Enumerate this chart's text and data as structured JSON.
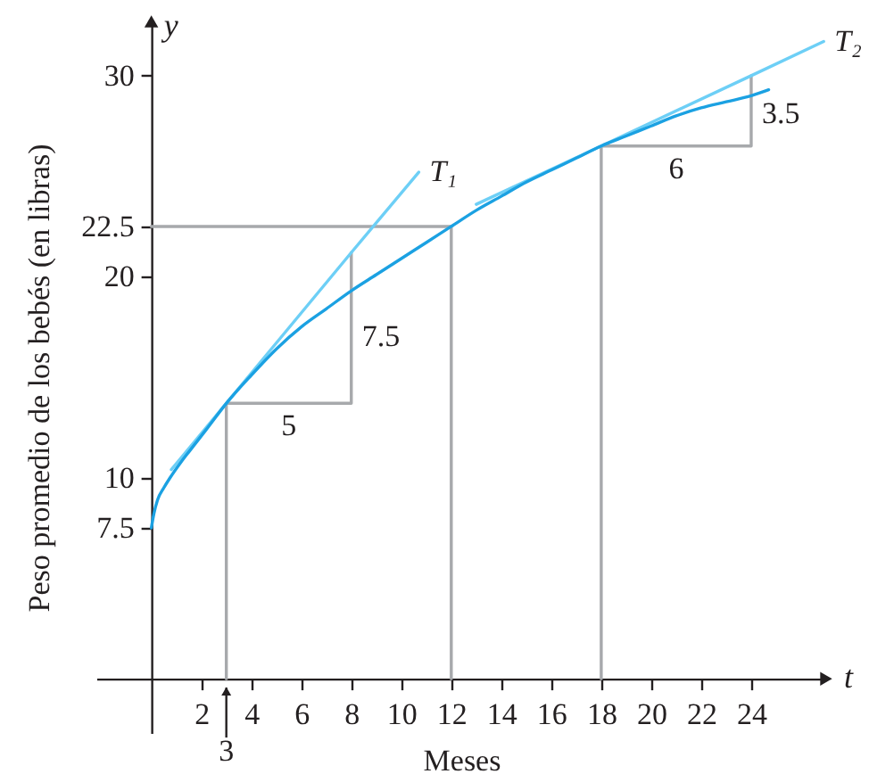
{
  "chart_data": {
    "type": "line",
    "xlabel": "Meses",
    "ylabel": "Peso promedio de los bebés (en libras)",
    "annotations": [
      "t",
      "y",
      {
        "text": "3",
        "x": 3,
        "y": 0
      },
      {
        "text": "5",
        "x": 5.5,
        "y": 13.7
      },
      {
        "text": "7.5",
        "x": 8,
        "y": 17
      },
      {
        "text": "6",
        "x": 21,
        "y": 26.5
      },
      {
        "text": "3.5",
        "x": 24,
        "y": 28.1
      },
      {
        "text": "T₁",
        "x": 10.7,
        "y": 25.2
      },
      {
        "text": "T₂",
        "x": 26.9,
        "y": 31.7
      }
    ],
    "xlim": [
      -2.2,
      27
    ],
    "ylim": [
      -2.7,
      32.7
    ],
    "xticks": [
      2,
      4,
      6,
      8,
      10,
      12,
      14,
      16,
      18,
      20,
      22,
      24
    ],
    "yticks": [
      7.5,
      10,
      20,
      22.5,
      30
    ],
    "grid": false,
    "marker": "none",
    "line_style": "solid",
    "series": [
      {
        "color": "#a7a9ac",
        "x": [
          0,
          12,
          12
        ],
        "values": [
          22.5,
          22.5,
          0
        ]
      },
      {
        "color": "#a7a9ac",
        "x": [
          3,
          3,
          8,
          8
        ],
        "values": [
          0,
          13.7,
          13.7,
          21.2
        ]
      },
      {
        "color": "#a7a9ac",
        "x": [
          18,
          18,
          24,
          24
        ],
        "values": [
          0,
          26.5,
          26.5,
          30
        ]
      },
      {
        "color": "#6dcff6",
        "x": [
          0.8,
          3,
          8,
          10.7
        ],
        "values": [
          10.4,
          13.7,
          21.2,
          25.2
        ]
      },
      {
        "color": "#6dcff6",
        "x": [
          13,
          18,
          24,
          26.9
        ],
        "values": [
          23.6,
          26.5,
          30,
          31.7
        ]
      },
      {
        "color": "#1ba1e2",
        "x": [
          0,
          0.1,
          0.25,
          0.5,
          0.75,
          1.2,
          1.7,
          2.2,
          3,
          4,
          5,
          6,
          7,
          8,
          9,
          10,
          11,
          12,
          13,
          14,
          15,
          16,
          17,
          18,
          19,
          20,
          21,
          22,
          23,
          24,
          24.7
        ],
        "values": [
          7.5,
          8.2,
          8.9,
          9.5,
          10.0,
          10.8,
          11.6,
          12.4,
          13.7,
          15.1,
          16.4,
          17.5,
          18.4,
          19.3,
          20.1,
          20.9,
          21.7,
          22.5,
          23.3,
          24.0,
          24.7,
          25.3,
          25.9,
          26.5,
          27.0,
          27.5,
          28.0,
          28.4,
          28.7,
          29.0,
          29.3
        ]
      }
    ]
  }
}
